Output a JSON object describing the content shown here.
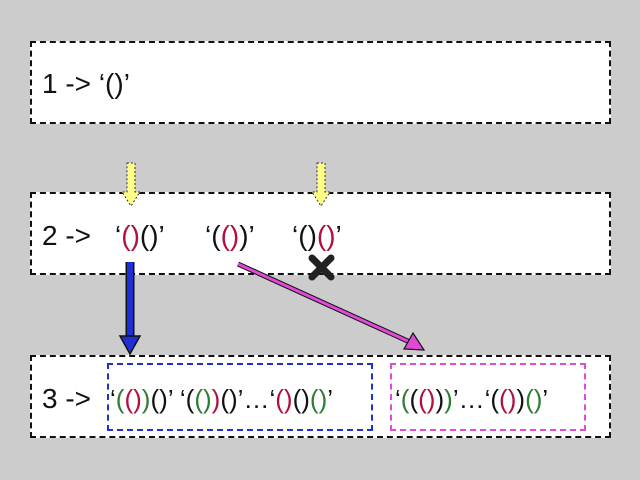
{
  "step1": {
    "label": "1 -> ",
    "expr": {
      "open_quote": "‘",
      "p1": "(",
      "p2": ")",
      "close_quote": "’"
    }
  },
  "step2": {
    "label": "2 -> ",
    "exprs": [
      {
        "q1": "‘",
        "a": "(",
        "b": ")",
        "c": "(",
        "d": ")",
        "q2": "’"
      },
      {
        "q1": "‘",
        "a": "(",
        "b": "(",
        "c": ")",
        "d": ")",
        "q2": "’"
      },
      {
        "q1": "‘",
        "a": "(",
        "b": ")",
        "c": "(",
        "d": ")",
        "q2": "’"
      }
    ]
  },
  "step3": {
    "label": "3 -> ",
    "blue_group": {
      "e1": {
        "q1": "‘",
        "a": "(",
        "b": "(",
        "c": ")",
        "d": ")",
        "e": "(",
        "f": ")",
        "q2": "’"
      },
      "e2": {
        "q1": "‘",
        "a": "(",
        "b": "(",
        "c": ")",
        "d": ")",
        "e": "(",
        "f": ")",
        "q2": "’"
      },
      "ellipsis": "…",
      "e3": {
        "q1": "‘",
        "a": "(",
        "b": ")",
        "c": "(",
        "d": ")",
        "e": "(",
        "f": ")",
        "q2": "’"
      }
    },
    "magenta_group": {
      "e1": {
        "q1": "‘",
        "a": "(",
        "b": "(",
        "c": "(",
        "d": ")",
        "e": ")",
        "f": ")",
        "q2": "’"
      },
      "ellipsis": "…",
      "e2": {
        "q1": "‘",
        "a": "(",
        "b": "(",
        "c": ")",
        "d": ")",
        "e": "(",
        "f": ")",
        "q2": "’"
      }
    }
  },
  "colors": {
    "background": "#cccccc",
    "box": "#ffffff",
    "red_paren": "#b0103a",
    "green_paren": "#2e7d32",
    "blue_arrow": "#1f2fd8",
    "magenta_arrow": "#e04ad7",
    "yellow_arrow": "#ffff88",
    "reject_mark": "#222222"
  },
  "icons": {
    "insertion_markers": "yellow-down-arrow-icon",
    "rejected": "x-mark-icon"
  }
}
